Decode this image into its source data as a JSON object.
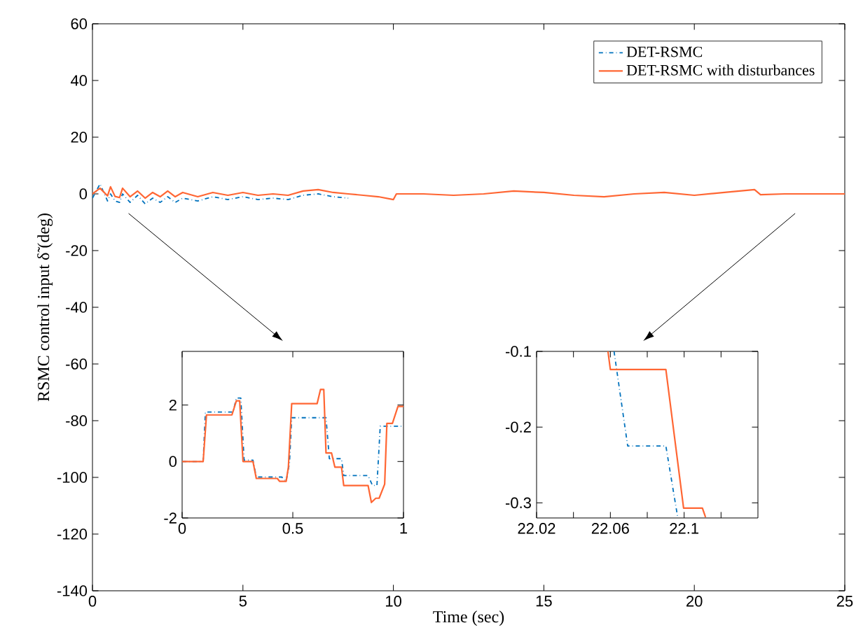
{
  "chart_data": [
    {
      "type": "line",
      "xlabel": "Time (sec)",
      "ylabel": "RSMC control input δ̃ (deg)",
      "xlim": [
        0,
        25
      ],
      "ylim": [
        -140,
        60
      ],
      "xticks": [
        0,
        5,
        10,
        15,
        20,
        25
      ],
      "yticks": [
        -140,
        -120,
        -100,
        -80,
        -60,
        -40,
        -20,
        0,
        20,
        40,
        60
      ],
      "legend": "top right",
      "series": [
        {
          "name": "DET-RSMC",
          "color": "#0072bd",
          "line_style": "dashdot",
          "x": [
            0,
            0.25,
            0.5,
            0.6,
            0.75,
            0.9,
            1,
            1.25,
            1.5,
            1.75,
            2,
            2.25,
            2.5,
            2.75,
            3,
            3.5,
            4,
            4.5,
            5,
            5.5,
            6,
            6.5,
            7,
            7.5,
            8,
            8.5
          ],
          "values": [
            -1.5,
            3.5,
            -2.5,
            0,
            -2.5,
            -3,
            0,
            -3,
            -0.5,
            -3.5,
            -1.5,
            -3,
            -1,
            -3,
            -1.5,
            -2.5,
            -1,
            -2,
            -1,
            -2,
            -1.5,
            -2,
            -0.5,
            0,
            -1,
            -1.5
          ]
        },
        {
          "name": "DET-RSMC with disturbances",
          "color": "#ff6633",
          "line_style": "solid",
          "x": [
            0,
            0.25,
            0.5,
            0.6,
            0.75,
            0.9,
            1,
            1.25,
            1.5,
            1.75,
            2,
            2.25,
            2.5,
            2.75,
            3,
            3.5,
            4,
            4.5,
            5,
            5.5,
            6,
            6.5,
            7,
            7.5,
            8,
            8.5,
            9,
            9.5,
            10,
            10.1,
            10.5,
            11,
            12,
            13,
            14,
            15,
            16,
            17,
            18,
            19,
            20,
            21,
            22,
            22.2,
            23,
            24,
            25
          ],
          "values": [
            0,
            2,
            -0.7,
            2.5,
            -0.9,
            -1.3,
            2,
            -1,
            1,
            -1.5,
            0.5,
            -1,
            1,
            -1,
            0.5,
            -1,
            0.5,
            -0.5,
            0.5,
            -0.5,
            0,
            -0.5,
            1,
            1.5,
            0.5,
            0,
            -0.5,
            -1,
            -2,
            0,
            0,
            0,
            -0.5,
            0,
            1,
            0.5,
            -0.5,
            -1,
            0,
            0.5,
            -0.5,
            0.5,
            1.5,
            -0.3,
            0,
            0,
            0
          ]
        }
      ]
    },
    {
      "type": "line",
      "xlim": [
        0,
        1
      ],
      "ylim": [
        -2,
        3.9
      ],
      "xticks": [
        0,
        0.5,
        1
      ],
      "yticks": [
        -2,
        0,
        2
      ],
      "series": [
        {
          "color": "#0072bd",
          "line_style": "dashdot",
          "x": [
            0,
            0.095,
            0.105,
            0.23,
            0.245,
            0.265,
            0.28,
            0.32,
            0.335,
            0.45,
            0.47,
            0.485,
            0.495,
            0.65,
            0.665,
            0.72,
            0.73,
            0.84,
            0.86,
            0.88,
            0.895,
            1
          ],
          "values": [
            0,
            0,
            1.75,
            1.75,
            2.25,
            2.25,
            0.05,
            0.05,
            -0.55,
            -0.55,
            -0.7,
            -0.05,
            1.55,
            1.55,
            0.1,
            0.1,
            -0.5,
            -0.5,
            -0.85,
            -0.85,
            1.25,
            1.25
          ]
        },
        {
          "color": "#ff6633",
          "line_style": "solid",
          "x": [
            0,
            0.095,
            0.11,
            0.225,
            0.245,
            0.26,
            0.275,
            0.32,
            0.335,
            0.43,
            0.44,
            0.47,
            0.48,
            0.495,
            0.61,
            0.625,
            0.64,
            0.65,
            0.675,
            0.69,
            0.72,
            0.73,
            0.84,
            0.855,
            0.875,
            0.89,
            0.915,
            0.925,
            0.95,
            0.975,
            1
          ],
          "values": [
            0,
            0,
            1.65,
            1.65,
            2.15,
            2.15,
            0,
            0,
            -0.6,
            -0.6,
            -0.7,
            -0.7,
            -0.2,
            2.05,
            2.05,
            2.55,
            2.55,
            0.3,
            0.3,
            -0.2,
            -0.2,
            -0.85,
            -0.85,
            -1.45,
            -1.3,
            -1.3,
            -0.8,
            1.35,
            1.35,
            1.95,
            1.95
          ]
        }
      ]
    },
    {
      "type": "line",
      "xlim": [
        22.02,
        22.14
      ],
      "ylim": [
        -0.32,
        -0.1
      ],
      "xticks": [
        22.02,
        {
          "value": 22.04,
          "label": null
        },
        22.06,
        {
          "value": 22.08,
          "label": null
        },
        22.1,
        {
          "value": 22.12,
          "label": null
        }
      ],
      "yticks": [
        -0.3,
        -0.2,
        -0.1
      ],
      "series": [
        {
          "color": "#0072bd",
          "line_style": "dashdot",
          "x": [
            22.062,
            22.0694,
            22.0901,
            22.0965
          ],
          "values": [
            -0.1,
            -0.225,
            -0.225,
            -0.319
          ]
        },
        {
          "color": "#ff6633",
          "line_style": "solid",
          "x": [
            22.0587,
            22.06,
            22.0901,
            22.0997,
            22.1099,
            22.1116
          ],
          "values": [
            -0.1,
            -0.124,
            -0.124,
            -0.307,
            -0.307,
            -0.319
          ]
        }
      ]
    }
  ]
}
